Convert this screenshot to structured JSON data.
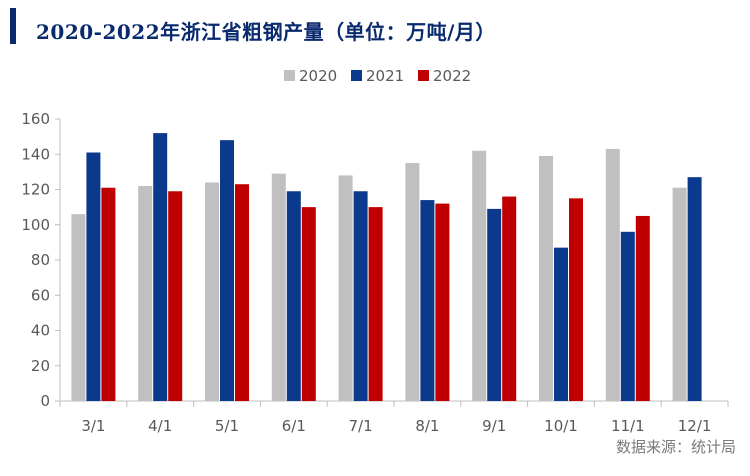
{
  "chart_data": {
    "type": "bar",
    "title": "2020-2022年浙江省粗钢产量（单位：万吨/月）",
    "source": "数据来源：统计局",
    "categories": [
      "3/1",
      "4/1",
      "5/1",
      "6/1",
      "7/1",
      "8/1",
      "9/1",
      "10/1",
      "11/1",
      "12/1"
    ],
    "series": [
      {
        "name": "2020",
        "color": "#c0c0c0",
        "values": [
          106,
          122,
          124,
          129,
          128,
          135,
          142,
          139,
          143,
          121
        ]
      },
      {
        "name": "2021",
        "color": "#0b3a8c",
        "values": [
          141,
          152,
          148,
          119,
          119,
          114,
          109,
          87,
          96,
          127
        ]
      },
      {
        "name": "2022",
        "color": "#c00000",
        "values": [
          121,
          119,
          123,
          110,
          110,
          112,
          116,
          115,
          105,
          null
        ]
      }
    ],
    "ylim": [
      0,
      160
    ],
    "yticks": [
      0,
      20,
      40,
      60,
      80,
      100,
      120,
      140,
      160
    ],
    "legend_position": "top",
    "grid": false
  }
}
